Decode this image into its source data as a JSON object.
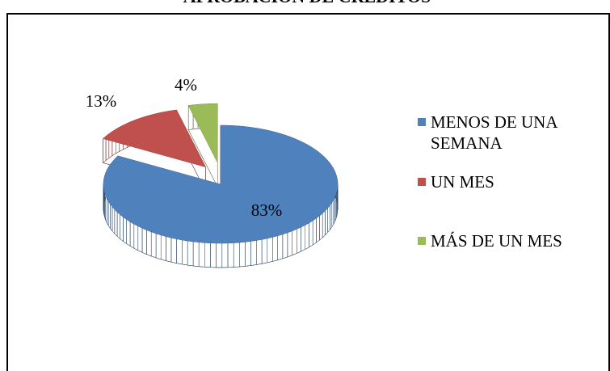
{
  "chart_data": {
    "type": "pie",
    "title": "APROBACIÓN DE CRÉDITOS",
    "categories": [
      "MENOS DE UNA SEMANA",
      "UN MES",
      "MÁS DE UN MES"
    ],
    "values": [
      83,
      13,
      4
    ],
    "value_labels": [
      "83%",
      "13%",
      "4%"
    ],
    "colors": [
      "#4f81bd",
      "#c0504d",
      "#9bbb59"
    ],
    "legend": "right"
  }
}
